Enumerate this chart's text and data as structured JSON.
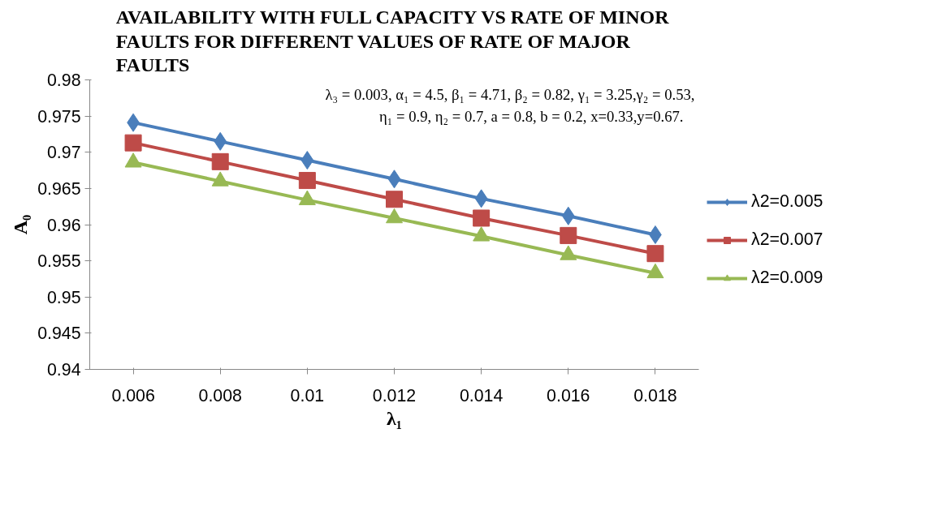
{
  "chart_data": {
    "type": "line",
    "title": "AVAILABILITY WITH FULL CAPACITY VS RATE OF MINOR FAULTS FOR DIFFERENT VALUES OF RATE OF MAJOR FAULTS",
    "xlabel": "λ₁",
    "ylabel": "A₀",
    "categories": [
      "0.006",
      "0.008",
      "0.01",
      "0.012",
      "0.014",
      "0.016",
      "0.018"
    ],
    "series": [
      {
        "name": "λ2=0.005",
        "color": "#4a7ebb",
        "marker": "diamond",
        "values": [
          0.9741,
          0.9715,
          0.9689,
          0.9663,
          0.9636,
          0.9612,
          0.9586
        ]
      },
      {
        "name": "λ2=0.007",
        "color": "#be4b48",
        "marker": "square",
        "values": [
          0.9713,
          0.9687,
          0.9661,
          0.9635,
          0.9609,
          0.9585,
          0.956
        ]
      },
      {
        "name": "λ2=0.009",
        "color": "#98b954",
        "marker": "triangle",
        "values": [
          0.9686,
          0.966,
          0.9634,
          0.9609,
          0.9584,
          0.9558,
          0.9533
        ]
      }
    ],
    "ylim": [
      0.94,
      0.98
    ],
    "yticks": [
      0.94,
      0.945,
      0.95,
      0.955,
      0.96,
      0.965,
      0.97,
      0.975,
      0.98
    ],
    "annotations": [
      "λ₃ = 0.003, α₁ = 4.5, β₁ = 4.71, β₂ = 0.82, γ₁ = 3.25,γ₂ = 0.53,",
      "η₁ = 0.9,  η₂ = 0.7, a = 0.8,  b = 0.2,  x=0.33,y=0.67."
    ],
    "grid": false,
    "legend": "right",
    "line_style": "solid"
  }
}
